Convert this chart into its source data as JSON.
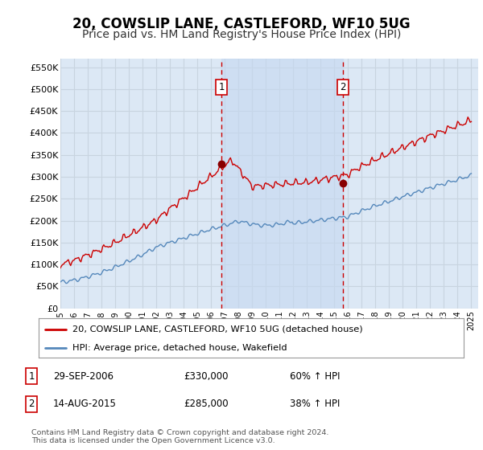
{
  "title": "20, COWSLIP LANE, CASTLEFORD, WF10 5UG",
  "subtitle": "Price paid vs. HM Land Registry's House Price Index (HPI)",
  "title_fontsize": 12,
  "subtitle_fontsize": 10,
  "background_color": "#ffffff",
  "plot_bg_color": "#dce8f5",
  "grid_color": "#c8d4e0",
  "shade_color": "#c5d8f0",
  "ylim": [
    0,
    570000
  ],
  "yticks": [
    0,
    50000,
    100000,
    150000,
    200000,
    250000,
    300000,
    350000,
    400000,
    450000,
    500000,
    550000
  ],
  "ytick_labels": [
    "£0",
    "£50K",
    "£100K",
    "£150K",
    "£200K",
    "£250K",
    "£300K",
    "£350K",
    "£400K",
    "£450K",
    "£500K",
    "£550K"
  ],
  "sale1_year": 2006.75,
  "sale1_price": 330000,
  "sale1_label": "1",
  "sale2_year": 2015.62,
  "sale2_price": 285000,
  "sale2_label": "2",
  "red_line_color": "#cc0000",
  "blue_line_color": "#5588bb",
  "marker_face_color": "#880000",
  "vline_color": "#cc0000",
  "legend_red_label": "20, COWSLIP LANE, CASTLEFORD, WF10 5UG (detached house)",
  "legend_blue_label": "HPI: Average price, detached house, Wakefield",
  "table_rows": [
    {
      "num": "1",
      "date": "29-SEP-2006",
      "price": "£330,000",
      "pct": "60% ↑ HPI"
    },
    {
      "num": "2",
      "date": "14-AUG-2015",
      "price": "£285,000",
      "pct": "38% ↑ HPI"
    }
  ],
  "footnote": "Contains HM Land Registry data © Crown copyright and database right 2024.\nThis data is licensed under the Open Government Licence v3.0."
}
